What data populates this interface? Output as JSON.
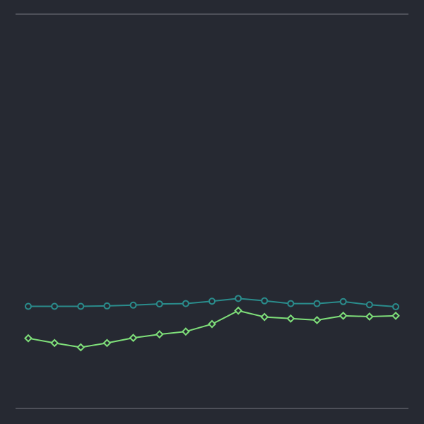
{
  "chart_data": {
    "type": "line",
    "title": "",
    "xlabel": "",
    "ylabel": "",
    "grid": false,
    "legend": false,
    "x": [
      1,
      2,
      3,
      4,
      5,
      6,
      7,
      8,
      9,
      10,
      11,
      12,
      13,
      14,
      15
    ],
    "ylim": [
      0,
      100
    ],
    "series": [
      {
        "marker": "circle",
        "color": "#2a8c8c",
        "values": [
          25.9,
          25.9,
          25.9,
          26.0,
          26.2,
          26.5,
          26.6,
          27.2,
          27.9,
          27.3,
          26.6,
          26.6,
          27.1,
          26.3,
          25.8
        ]
      },
      {
        "marker": "diamond",
        "color": "#7fe07a",
        "values": [
          17.8,
          16.6,
          15.5,
          16.6,
          17.9,
          18.8,
          19.5,
          21.4,
          24.8,
          23.2,
          22.8,
          22.4,
          23.5,
          23.3,
          23.5
        ]
      }
    ]
  }
}
